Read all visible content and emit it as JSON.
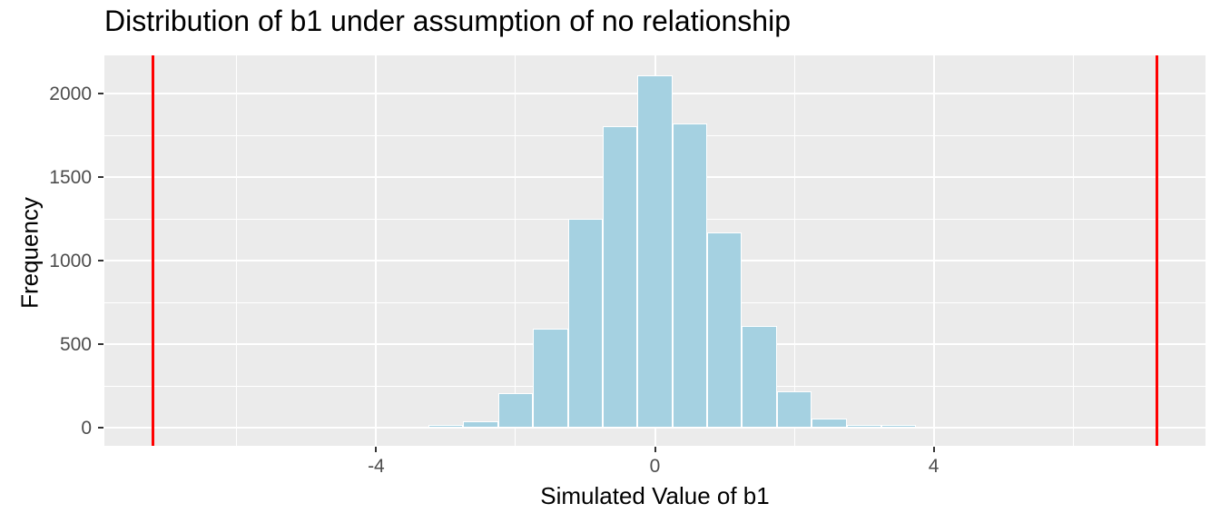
{
  "chart_data": {
    "type": "bar",
    "subtype": "histogram",
    "title": "Distribution of b1 under assumption of no relationship",
    "xlabel": "Simulated Value of b1",
    "ylabel": "Frequency",
    "x_ticks": [
      -4,
      0,
      4
    ],
    "y_ticks": [
      0,
      500,
      1000,
      1500,
      2000
    ],
    "x_minor_gridlines": [
      -6,
      -2,
      2,
      6
    ],
    "y_minor_gridlines": [
      250,
      750,
      1250,
      1750
    ],
    "xlim": [
      -7.9,
      7.9
    ],
    "ylim": [
      -109,
      2231
    ],
    "grid": "major-and-minor-white-on-gray",
    "legend_position": "none",
    "binwidth": 0.5,
    "bins": [
      {
        "center": -3.0,
        "count": 10
      },
      {
        "center": -2.5,
        "count": 40
      },
      {
        "center": -2.0,
        "count": 205
      },
      {
        "center": -1.5,
        "count": 595
      },
      {
        "center": -1.0,
        "count": 1250
      },
      {
        "center": -0.5,
        "count": 1805
      },
      {
        "center": 0.0,
        "count": 2110
      },
      {
        "center": 0.5,
        "count": 1825
      },
      {
        "center": 1.0,
        "count": 1170
      },
      {
        "center": 1.5,
        "count": 610
      },
      {
        "center": 2.0,
        "count": 220
      },
      {
        "center": 2.5,
        "count": 55
      },
      {
        "center": 3.0,
        "count": 10
      },
      {
        "center": 3.5,
        "count": 5
      }
    ],
    "vlines": [
      -7.2,
      7.2
    ],
    "colors": {
      "panel_background": "#EBEBEB",
      "gridline": "#FFFFFF",
      "bar_fill": "#A5D1E1",
      "bar_outline": "#FFFFFF",
      "vline": "#FF0000",
      "axis_text": "#4D4D4D",
      "title_text": "#000000",
      "tick_mark": "#333333"
    }
  }
}
